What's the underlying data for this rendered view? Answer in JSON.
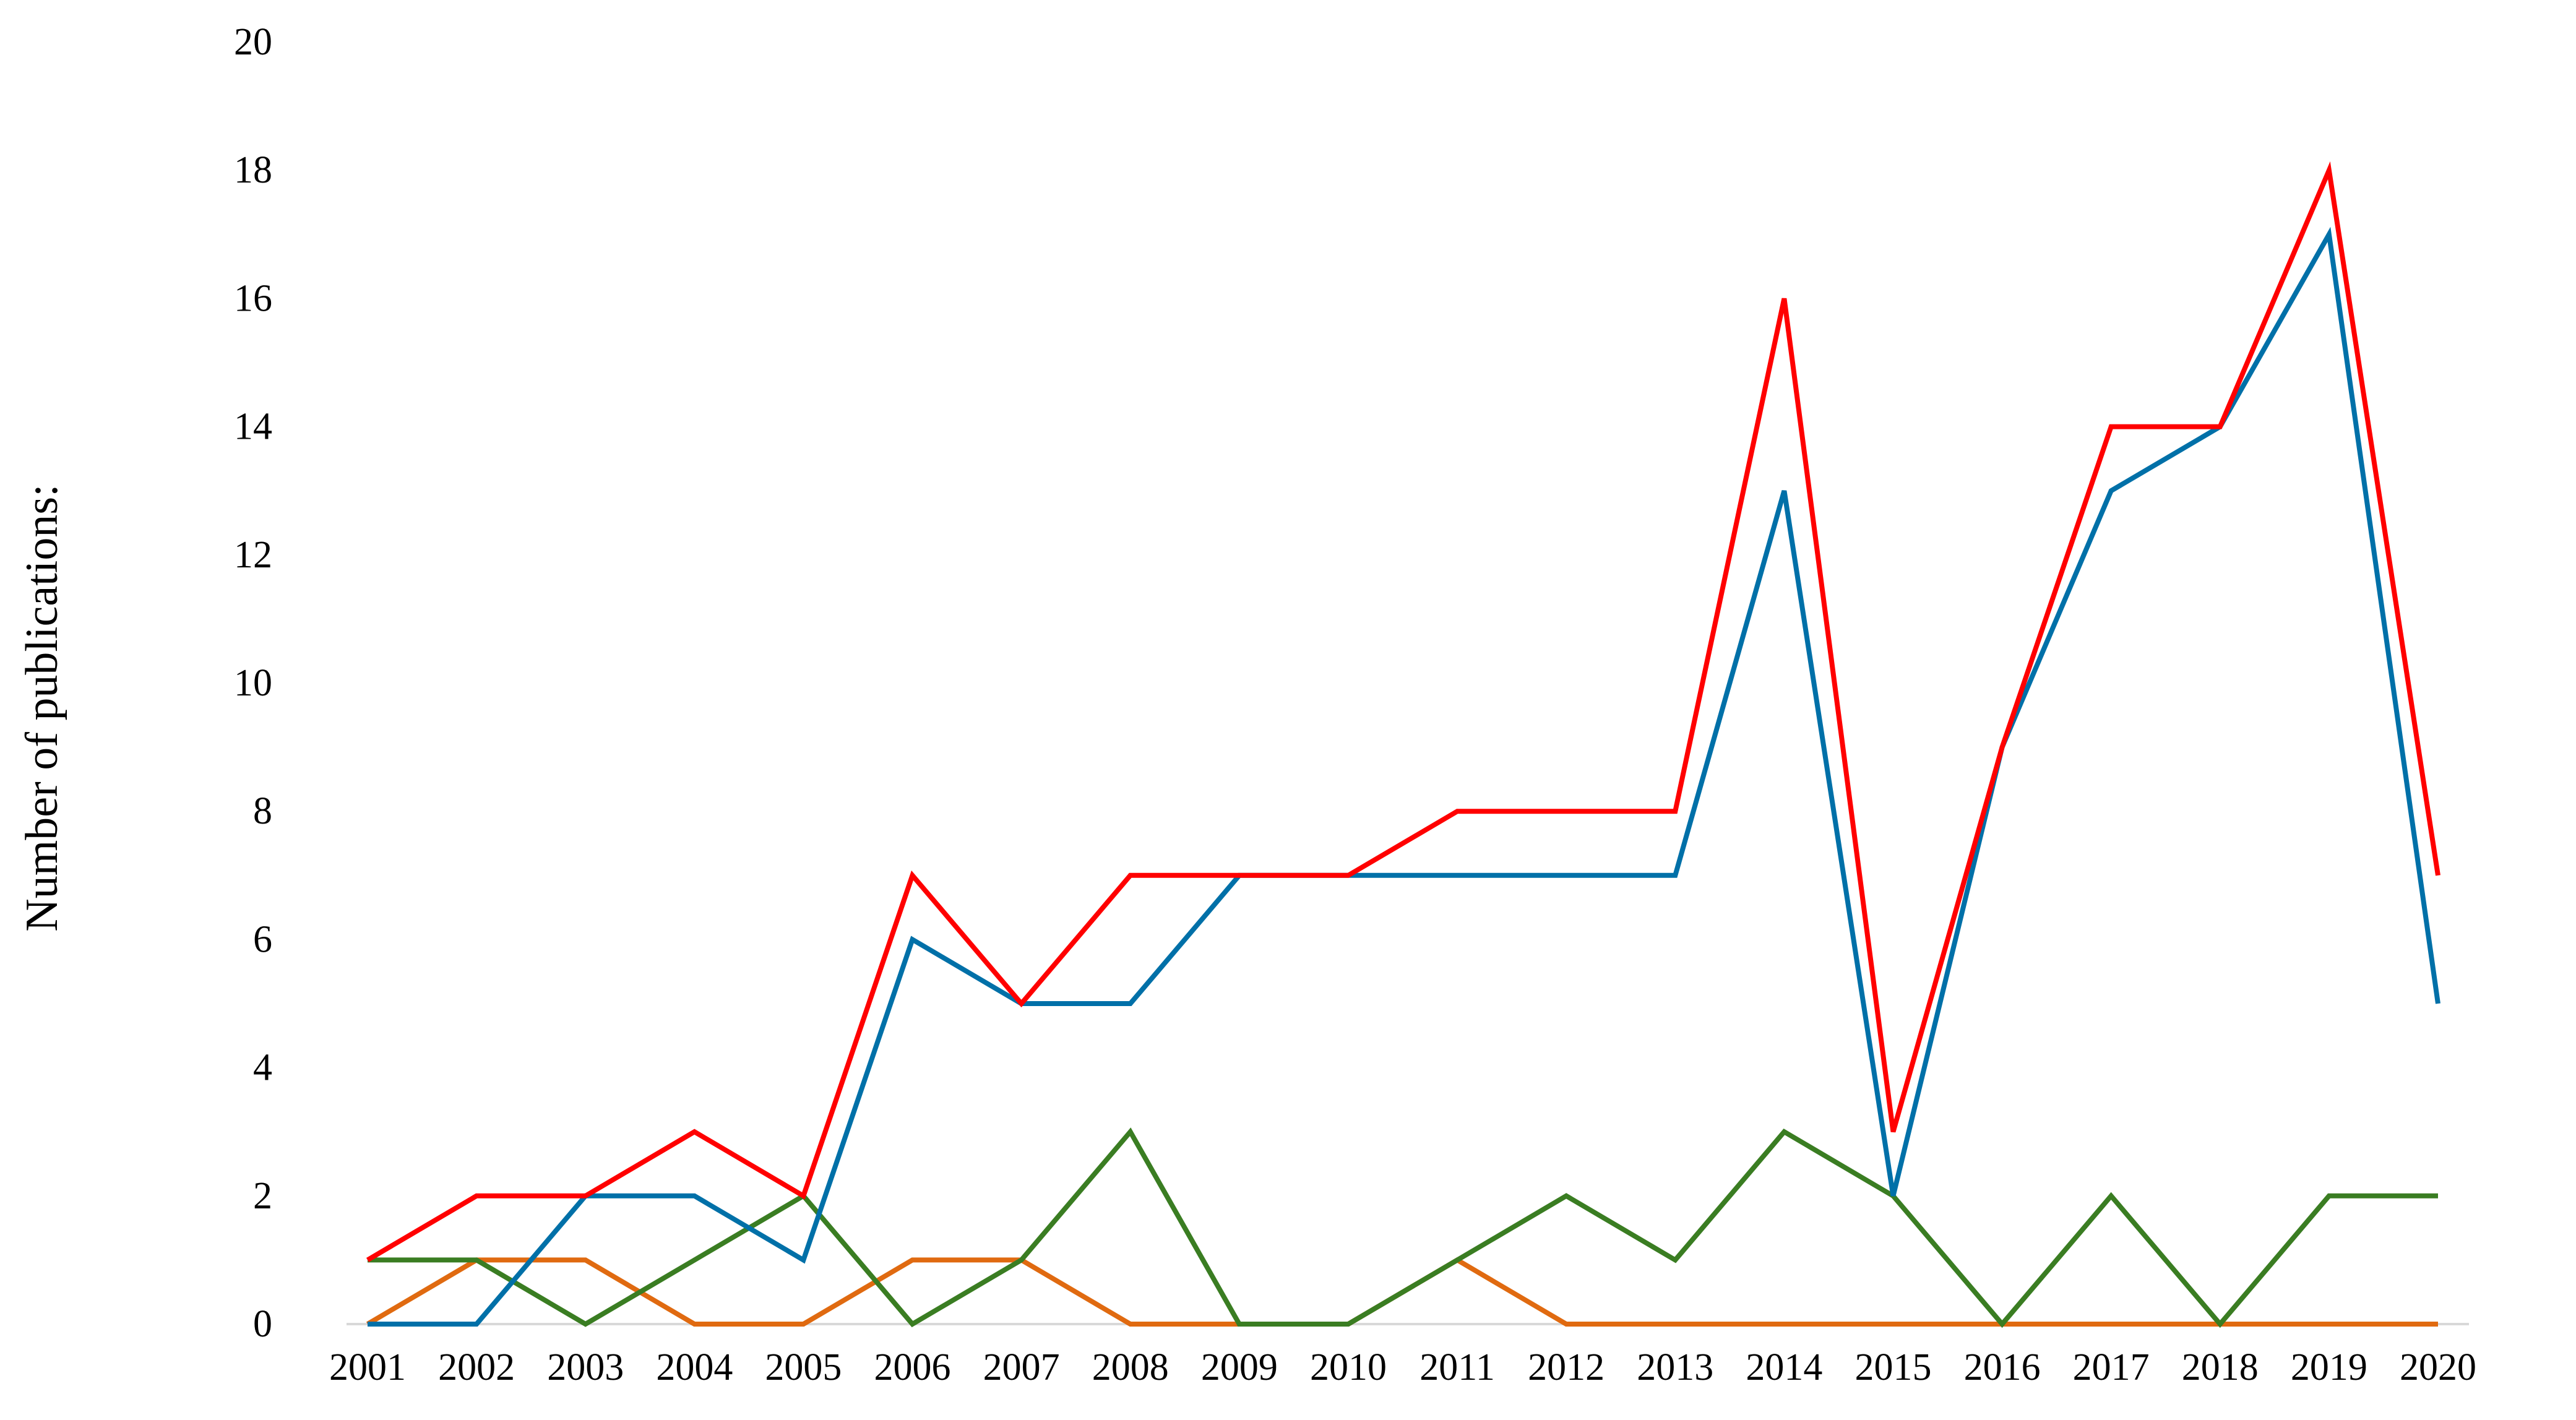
{
  "chart_data": {
    "type": "line",
    "title": "",
    "xlabel": "",
    "ylabel": "Number of publications:",
    "ylim": [
      0,
      20
    ],
    "yticks": [
      "0",
      "2",
      "4",
      "6",
      "8",
      "10",
      "12",
      "14",
      "16",
      "18",
      "20"
    ],
    "grid": false,
    "legend": "none",
    "categories": [
      "2001",
      "2002",
      "2003",
      "2004",
      "2005",
      "2006",
      "2007",
      "2008",
      "2009",
      "2010",
      "2011",
      "2012",
      "2013",
      "2014",
      "2015",
      "2016",
      "2017",
      "2018",
      "2019",
      "2020"
    ],
    "series": [
      {
        "color": "#ff0000",
        "values": [
          1,
          2,
          2,
          3,
          2,
          7,
          5,
          7,
          7,
          7,
          8,
          8,
          8,
          16,
          3,
          9,
          14,
          14,
          18,
          7
        ]
      },
      {
        "color": "#0070a8",
        "values": [
          0,
          0,
          2,
          2,
          1,
          6,
          5,
          5,
          7,
          7,
          7,
          7,
          7,
          13,
          2,
          9,
          13,
          14,
          17,
          5
        ]
      },
      {
        "color": "#3a7d22",
        "values": [
          1,
          1,
          0,
          1,
          2,
          0,
          1,
          3,
          0,
          0,
          1,
          2,
          1,
          3,
          2,
          0,
          2,
          0,
          2,
          2
        ]
      },
      {
        "color": "#e06a10",
        "values": [
          0,
          1,
          1,
          0,
          0,
          1,
          1,
          0,
          0,
          0,
          1,
          0,
          0,
          0,
          0,
          0,
          0,
          0,
          0,
          0
        ]
      }
    ]
  }
}
